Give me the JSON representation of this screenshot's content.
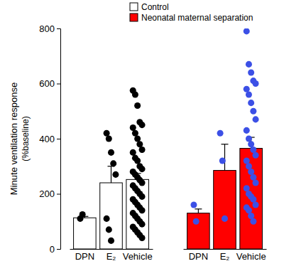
{
  "chart_data": {
    "type": "bar",
    "y_label": [
      "Minute ventilation response",
      "(%baseline)"
    ],
    "categories": [
      "DPN",
      "E₂",
      "Vehicle"
    ],
    "ylim": [
      0,
      800
    ],
    "yticks": [
      0,
      200,
      400,
      600,
      800
    ],
    "legend": "top",
    "series": [
      {
        "name": "Control",
        "color": "#ffffff",
        "values": [
          113,
          240,
          252
        ],
        "errors": [
          5,
          60,
          22
        ],
        "points": {
          "color": "#000000",
          "marker": "circle",
          "values": [
            [
              110,
              125
            ],
            [
              420,
              400,
              350,
              310,
              270,
              110,
              70,
              30
            ],
            [
              575,
              560,
              520,
              460,
              450,
              440,
              420,
              400,
              380,
              360,
              350,
              330,
              320,
              300,
              290,
              280,
              270,
              260,
              250,
              240,
              230,
              220,
              210,
              200,
              190,
              180,
              170,
              160,
              150,
              140,
              130,
              120,
              110,
              100,
              90,
              80,
              70,
              60,
              50,
              40
            ]
          ]
        }
      },
      {
        "name": "Neonatal maternal separation",
        "color": "#ff0000",
        "values": [
          130,
          285,
          365
        ],
        "errors": [
          15,
          95,
          40
        ],
        "points": {
          "color": "#3c50e6",
          "marker": "circle",
          "values": [
            [
              160,
              100
            ],
            [
              420,
              320,
              110
            ],
            [
              790,
              670,
              640,
              610,
              600,
              580,
              560,
              530,
              500,
              470,
              430,
              400,
              380,
              360,
              340,
              320,
              300,
              280,
              260,
              240,
              220,
              200,
              190,
              180,
              160,
              150,
              140,
              120,
              100
            ]
          ]
        }
      }
    ]
  }
}
